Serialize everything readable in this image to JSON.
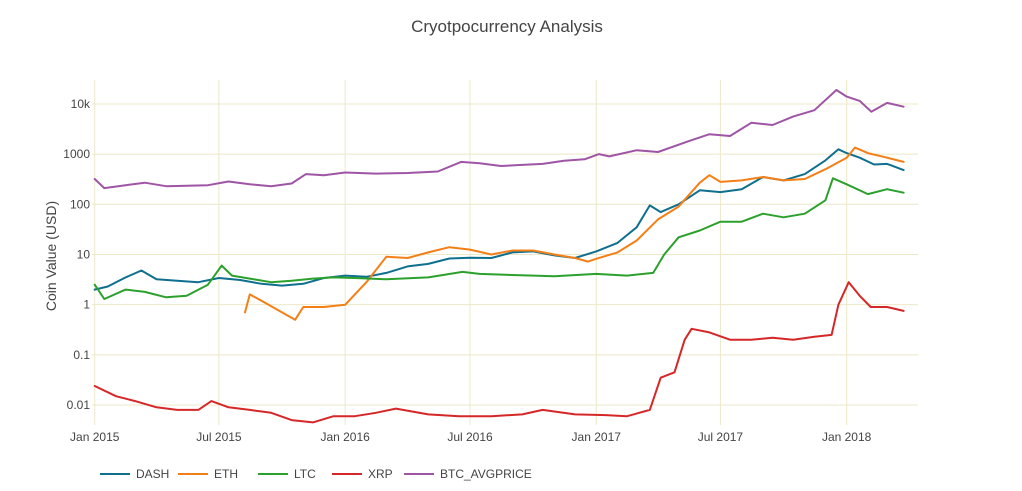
{
  "chart_data": {
    "type": "line",
    "title": "Cryotpocurrency Analysis",
    "ylabel": "Coin Value (USD)",
    "xlabel": "",
    "y_scale": "log",
    "ylim": [
      0.004,
      30000
    ],
    "xlim": [
      "2014-12-28",
      "2018-04-15"
    ],
    "grid": true,
    "legend_position": "bottom",
    "x_ticks": [
      {
        "date": "2015-01-01",
        "label": "Jan 2015"
      },
      {
        "date": "2015-07-01",
        "label": "Jul 2015"
      },
      {
        "date": "2016-01-01",
        "label": "Jan 2016"
      },
      {
        "date": "2016-07-01",
        "label": "Jul 2016"
      },
      {
        "date": "2017-01-01",
        "label": "Jan 2017"
      },
      {
        "date": "2017-07-01",
        "label": "Jul 2017"
      },
      {
        "date": "2018-01-01",
        "label": "Jan 2018"
      }
    ],
    "y_ticks": [
      {
        "value": 0.01,
        "label": "0.01"
      },
      {
        "value": 0.1,
        "label": "0.1"
      },
      {
        "value": 1,
        "label": "1"
      },
      {
        "value": 10,
        "label": "10"
      },
      {
        "value": 100,
        "label": "100"
      },
      {
        "value": 1000,
        "label": "1000"
      },
      {
        "value": 10000,
        "label": "10k"
      }
    ],
    "series": [
      {
        "name": "DASH",
        "color": "#0f6f8f",
        "points": [
          [
            "2015-01-01",
            2.0
          ],
          [
            "2015-01-20",
            2.3
          ],
          [
            "2015-02-15",
            3.5
          ],
          [
            "2015-03-10",
            4.8
          ],
          [
            "2015-04-01",
            3.2
          ],
          [
            "2015-05-01",
            3.0
          ],
          [
            "2015-06-01",
            2.8
          ],
          [
            "2015-07-01",
            3.4
          ],
          [
            "2015-08-01",
            3.1
          ],
          [
            "2015-09-01",
            2.6
          ],
          [
            "2015-10-01",
            2.4
          ],
          [
            "2015-11-01",
            2.6
          ],
          [
            "2015-12-01",
            3.4
          ],
          [
            "2016-01-01",
            3.8
          ],
          [
            "2016-02-01",
            3.6
          ],
          [
            "2016-03-01",
            4.3
          ],
          [
            "2016-04-01",
            5.8
          ],
          [
            "2016-05-01",
            6.5
          ],
          [
            "2016-06-01",
            8.3
          ],
          [
            "2016-07-01",
            8.6
          ],
          [
            "2016-08-01",
            8.5
          ],
          [
            "2016-09-01",
            11.0
          ],
          [
            "2016-10-01",
            11.5
          ],
          [
            "2016-11-01",
            9.6
          ],
          [
            "2016-12-01",
            8.5
          ],
          [
            "2017-01-01",
            11.5
          ],
          [
            "2017-02-01",
            17.0
          ],
          [
            "2017-03-01",
            35.0
          ],
          [
            "2017-03-20",
            95.0
          ],
          [
            "2017-04-05",
            70.0
          ],
          [
            "2017-05-01",
            100.0
          ],
          [
            "2017-06-01",
            190.0
          ],
          [
            "2017-07-01",
            175.0
          ],
          [
            "2017-08-01",
            200.0
          ],
          [
            "2017-09-01",
            350.0
          ],
          [
            "2017-10-01",
            300.0
          ],
          [
            "2017-11-01",
            400.0
          ],
          [
            "2017-12-01",
            750.0
          ],
          [
            "2017-12-20",
            1250.0
          ],
          [
            "2018-01-01",
            1050.0
          ],
          [
            "2018-01-20",
            850.0
          ],
          [
            "2018-02-10",
            620.0
          ],
          [
            "2018-03-01",
            640.0
          ],
          [
            "2018-03-25",
            480.0
          ]
        ]
      },
      {
        "name": "ETH",
        "color": "#f57f17",
        "points": [
          [
            "2015-08-08",
            0.7
          ],
          [
            "2015-08-15",
            1.6
          ],
          [
            "2015-09-01",
            1.2
          ],
          [
            "2015-10-01",
            0.7
          ],
          [
            "2015-10-20",
            0.5
          ],
          [
            "2015-11-01",
            0.9
          ],
          [
            "2015-12-01",
            0.9
          ],
          [
            "2016-01-01",
            1.0
          ],
          [
            "2016-02-01",
            2.8
          ],
          [
            "2016-03-01",
            9.0
          ],
          [
            "2016-04-01",
            8.5
          ],
          [
            "2016-05-01",
            11.0
          ],
          [
            "2016-06-01",
            14.0
          ],
          [
            "2016-07-01",
            12.5
          ],
          [
            "2016-08-01",
            10.0
          ],
          [
            "2016-09-01",
            12.0
          ],
          [
            "2016-10-01",
            12.0
          ],
          [
            "2016-11-01",
            10.0
          ],
          [
            "2016-12-01",
            8.5
          ],
          [
            "2016-12-20",
            7.2
          ],
          [
            "2017-01-01",
            8.2
          ],
          [
            "2017-02-01",
            11.0
          ],
          [
            "2017-03-01",
            19.0
          ],
          [
            "2017-04-01",
            50.0
          ],
          [
            "2017-05-01",
            90.0
          ],
          [
            "2017-06-01",
            270.0
          ],
          [
            "2017-06-15",
            380.0
          ],
          [
            "2017-07-01",
            280.0
          ],
          [
            "2017-08-01",
            300.0
          ],
          [
            "2017-09-01",
            350.0
          ],
          [
            "2017-10-01",
            300.0
          ],
          [
            "2017-11-01",
            320.0
          ],
          [
            "2017-12-01",
            500.0
          ],
          [
            "2018-01-01",
            850.0
          ],
          [
            "2018-01-13",
            1350.0
          ],
          [
            "2018-02-01",
            1050.0
          ],
          [
            "2018-03-01",
            850.0
          ],
          [
            "2018-03-25",
            700.0
          ]
        ]
      },
      {
        "name": "LTC",
        "color": "#2ca02c",
        "points": [
          [
            "2015-01-01",
            2.5
          ],
          [
            "2015-01-15",
            1.3
          ],
          [
            "2015-02-15",
            2.0
          ],
          [
            "2015-03-15",
            1.8
          ],
          [
            "2015-04-15",
            1.4
          ],
          [
            "2015-05-15",
            1.5
          ],
          [
            "2015-06-15",
            2.5
          ],
          [
            "2015-07-05",
            6.0
          ],
          [
            "2015-07-20",
            3.8
          ],
          [
            "2015-08-15",
            3.3
          ],
          [
            "2015-09-15",
            2.8
          ],
          [
            "2015-10-15",
            3.0
          ],
          [
            "2015-11-15",
            3.3
          ],
          [
            "2015-12-15",
            3.5
          ],
          [
            "2016-01-15",
            3.4
          ],
          [
            "2016-03-01",
            3.2
          ],
          [
            "2016-05-01",
            3.5
          ],
          [
            "2016-06-20",
            4.5
          ],
          [
            "2016-07-15",
            4.1
          ],
          [
            "2016-09-01",
            3.9
          ],
          [
            "2016-11-01",
            3.7
          ],
          [
            "2017-01-01",
            4.1
          ],
          [
            "2017-02-15",
            3.8
          ],
          [
            "2017-03-25",
            4.3
          ],
          [
            "2017-04-10",
            10.0
          ],
          [
            "2017-05-01",
            22.0
          ],
          [
            "2017-06-01",
            30.0
          ],
          [
            "2017-07-01",
            45.0
          ],
          [
            "2017-08-01",
            45.0
          ],
          [
            "2017-09-01",
            65.0
          ],
          [
            "2017-10-01",
            55.0
          ],
          [
            "2017-11-01",
            65.0
          ],
          [
            "2017-12-01",
            120.0
          ],
          [
            "2017-12-12",
            330.0
          ],
          [
            "2018-01-01",
            250.0
          ],
          [
            "2018-02-01",
            160.0
          ],
          [
            "2018-03-01",
            200.0
          ],
          [
            "2018-03-25",
            170.0
          ]
        ]
      },
      {
        "name": "XRP",
        "color": "#d62728",
        "points": [
          [
            "2015-01-01",
            0.024
          ],
          [
            "2015-02-01",
            0.015
          ],
          [
            "2015-03-01",
            0.012
          ],
          [
            "2015-04-01",
            0.009
          ],
          [
            "2015-05-01",
            0.008
          ],
          [
            "2015-06-01",
            0.008
          ],
          [
            "2015-06-20",
            0.012
          ],
          [
            "2015-07-15",
            0.009
          ],
          [
            "2015-08-15",
            0.008
          ],
          [
            "2015-09-15",
            0.007
          ],
          [
            "2015-10-15",
            0.005
          ],
          [
            "2015-11-15",
            0.0045
          ],
          [
            "2015-12-15",
            0.006
          ],
          [
            "2016-01-15",
            0.006
          ],
          [
            "2016-02-15",
            0.007
          ],
          [
            "2016-03-15",
            0.0085
          ],
          [
            "2016-05-01",
            0.0065
          ],
          [
            "2016-06-15",
            0.006
          ],
          [
            "2016-08-01",
            0.006
          ],
          [
            "2016-09-15",
            0.0065
          ],
          [
            "2016-10-15",
            0.008
          ],
          [
            "2016-12-01",
            0.0065
          ],
          [
            "2017-01-15",
            0.0063
          ],
          [
            "2017-02-15",
            0.006
          ],
          [
            "2017-03-20",
            0.008
          ],
          [
            "2017-04-05",
            0.035
          ],
          [
            "2017-04-25",
            0.045
          ],
          [
            "2017-05-10",
            0.2
          ],
          [
            "2017-05-20",
            0.33
          ],
          [
            "2017-06-15",
            0.28
          ],
          [
            "2017-07-15",
            0.2
          ],
          [
            "2017-08-15",
            0.2
          ],
          [
            "2017-09-15",
            0.22
          ],
          [
            "2017-10-15",
            0.2
          ],
          [
            "2017-11-15",
            0.23
          ],
          [
            "2017-12-10",
            0.25
          ],
          [
            "2017-12-20",
            1.0
          ],
          [
            "2018-01-04",
            2.8
          ],
          [
            "2018-01-20",
            1.5
          ],
          [
            "2018-02-05",
            0.9
          ],
          [
            "2018-03-01",
            0.9
          ],
          [
            "2018-03-25",
            0.75
          ]
        ]
      },
      {
        "name": "BTC_AVGPRICE",
        "color": "#9f55a5",
        "points": [
          [
            "2015-01-01",
            320.0
          ],
          [
            "2015-01-15",
            210.0
          ],
          [
            "2015-02-15",
            240.0
          ],
          [
            "2015-03-15",
            270.0
          ],
          [
            "2015-04-15",
            230.0
          ],
          [
            "2015-05-15",
            235.0
          ],
          [
            "2015-06-15",
            240.0
          ],
          [
            "2015-07-15",
            285.0
          ],
          [
            "2015-08-15",
            250.0
          ],
          [
            "2015-09-15",
            230.0
          ],
          [
            "2015-10-15",
            260.0
          ],
          [
            "2015-11-05",
            400.0
          ],
          [
            "2015-12-01",
            380.0
          ],
          [
            "2016-01-01",
            430.0
          ],
          [
            "2016-02-15",
            410.0
          ],
          [
            "2016-04-01",
            420.0
          ],
          [
            "2016-05-15",
            450.0
          ],
          [
            "2016-06-18",
            700.0
          ],
          [
            "2016-07-15",
            660.0
          ],
          [
            "2016-08-15",
            580.0
          ],
          [
            "2016-09-15",
            610.0
          ],
          [
            "2016-10-15",
            640.0
          ],
          [
            "2016-11-15",
            740.0
          ],
          [
            "2016-12-15",
            790.0
          ],
          [
            "2017-01-05",
            1000.0
          ],
          [
            "2017-01-20",
            900.0
          ],
          [
            "2017-03-01",
            1200.0
          ],
          [
            "2017-04-01",
            1100.0
          ],
          [
            "2017-05-15",
            1800.0
          ],
          [
            "2017-06-15",
            2500.0
          ],
          [
            "2017-07-15",
            2300.0
          ],
          [
            "2017-08-15",
            4200.0
          ],
          [
            "2017-09-15",
            3800.0
          ],
          [
            "2017-10-15",
            5600.0
          ],
          [
            "2017-11-15",
            7500.0
          ],
          [
            "2017-12-17",
            19000.0
          ],
          [
            "2018-01-01",
            14000.0
          ],
          [
            "2018-01-20",
            11500.0
          ],
          [
            "2018-02-06",
            7000.0
          ],
          [
            "2018-03-01",
            10500.0
          ],
          [
            "2018-03-25",
            8800.0
          ]
        ]
      }
    ]
  }
}
